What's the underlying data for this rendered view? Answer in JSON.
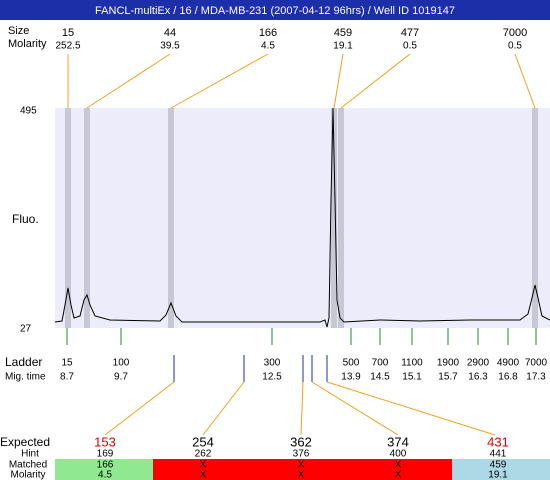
{
  "header": {
    "title": "FANCL-multiEx / 16 / MDA-MB-231 (2007-04-12 96hrs) / Well ID 1019147"
  },
  "peaks": {
    "size_label": "Size",
    "molarity_label": "Molarity",
    "items": [
      {
        "size": "15",
        "molarity": "252.5"
      },
      {
        "size": "44",
        "molarity": "39.5"
      },
      {
        "size": "166",
        "molarity": "4.5"
      },
      {
        "size": "459",
        "molarity": "19.1"
      },
      {
        "size": "477",
        "molarity": "0.5"
      },
      {
        "size": "7000",
        "molarity": "0.5"
      }
    ]
  },
  "fluo": {
    "label": "Fluo.",
    "max": "495",
    "min": "27"
  },
  "ladder": {
    "label": "Ladder",
    "time_label": "Mig. time",
    "items": [
      {
        "size": "15",
        "time": "8.7"
      },
      {
        "size": "100",
        "time": "9.7"
      },
      {
        "size": "300",
        "time": "12.5"
      },
      {
        "size": "500",
        "time": "13.9"
      },
      {
        "size": "700",
        "time": "14.5"
      },
      {
        "size": "1100",
        "time": "15.1"
      },
      {
        "size": "1900",
        "time": "15.7"
      },
      {
        "size": "2900",
        "time": "16.3"
      },
      {
        "size": "4900",
        "time": "16.8"
      },
      {
        "size": "7000",
        "time": "17.3"
      }
    ]
  },
  "expected": {
    "label": "Expected",
    "hint_label": "Hint",
    "matched_label": "Matched",
    "molarity_label": "Molarity",
    "items": [
      {
        "expected": "153",
        "color": "#e00000",
        "hint": "169",
        "matched": "166",
        "molarity": "4.5"
      },
      {
        "expected": "254",
        "color": "#000000",
        "hint": "262",
        "matched": "X",
        "molarity": "X"
      },
      {
        "expected": "362",
        "color": "#000000",
        "hint": "376",
        "matched": "X",
        "molarity": "X"
      },
      {
        "expected": "374",
        "color": "#000000",
        "hint": "400",
        "matched": "X",
        "molarity": "X"
      },
      {
        "expected": "431",
        "color": "#e00000",
        "hint": "441",
        "matched": "459",
        "molarity": "19.1"
      }
    ],
    "bands": [
      {
        "color": "#90e890"
      },
      {
        "color": "#ff0000"
      },
      {
        "color": "#add8e6"
      }
    ]
  }
}
